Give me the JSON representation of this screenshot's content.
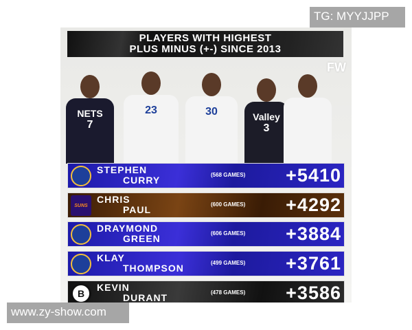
{
  "title": {
    "line1": "PLAYERS WITH HIGHEST",
    "line2": "PLUS MINUS (+-) SINCE 2013"
  },
  "brand_mark": "FW",
  "players_photo": [
    {
      "jersey_text": "NETS",
      "number": "7",
      "color": "#1a1a2e"
    },
    {
      "jersey_text": "",
      "number": "23",
      "color": "#f4f4f4"
    },
    {
      "jersey_text": "",
      "number": "30",
      "color": "#f4f4f4"
    },
    {
      "jersey_text": "Valley",
      "number": "3",
      "color": "#1c1c28"
    },
    {
      "jersey_text": "",
      "number": "",
      "color": "#f4f4f4"
    }
  ],
  "rankings": [
    {
      "first": "STEPHEN",
      "last": "CURRY",
      "games": "(568 GAMES)",
      "plus_minus": "+5410",
      "team_logo": "warriors-logo",
      "logo_text": "",
      "theme": "blue"
    },
    {
      "first": "CHRIS",
      "last": "PAUL",
      "games": "(600 GAMES)",
      "plus_minus": "+4292",
      "team_logo": "suns-logo",
      "logo_text": "SUNS",
      "theme": "brown"
    },
    {
      "first": "DRAYMOND",
      "last": "GREEN",
      "games": "(606 GAMES)",
      "plus_minus": "+3884",
      "team_logo": "warriors-logo",
      "logo_text": "",
      "theme": "blue"
    },
    {
      "first": "KLAY",
      "last": "THOMPSON",
      "games": "(499 GAMES)",
      "plus_minus": "+3761",
      "team_logo": "warriors-logo",
      "logo_text": "",
      "theme": "blue"
    },
    {
      "first": "KEVIN",
      "last": "DURANT",
      "games": "(478 GAMES)",
      "plus_minus": "+3586",
      "team_logo": "nets-logo",
      "logo_text": "B",
      "theme": "black"
    }
  ],
  "watermarks": {
    "top": "TG: MYYJJPP",
    "bottom": "www.zy-show.com"
  }
}
